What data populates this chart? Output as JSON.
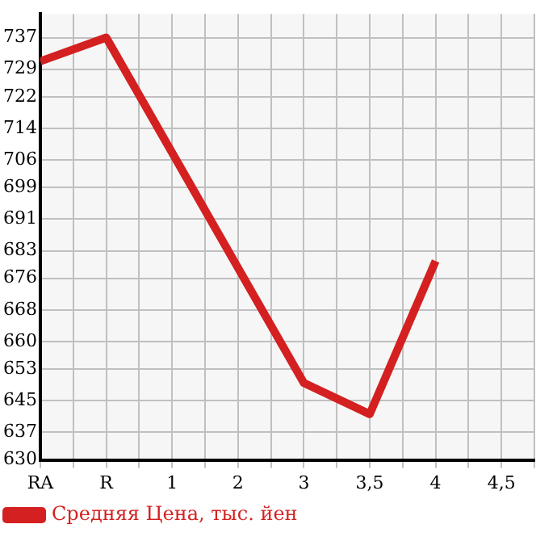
{
  "chart_data": {
    "type": "line",
    "categories": [
      "RA",
      "R",
      "1",
      "2",
      "3",
      "3,5",
      "4",
      "4,5"
    ],
    "series": [
      {
        "name": "Средняя Цена, тыс. йен",
        "color": "#d42020",
        "values": [
          731,
          737,
          null,
          null,
          649.5,
          641.6,
          680.4,
          null
        ]
      }
    ],
    "ylim": [
      630,
      743
    ],
    "yticks": [
      630,
      637,
      645,
      653,
      660,
      668,
      676,
      683,
      691,
      699,
      706,
      714,
      722,
      729,
      737
    ],
    "grid": true,
    "legend": "bottom",
    "marker": "none",
    "line_style": "solid"
  }
}
